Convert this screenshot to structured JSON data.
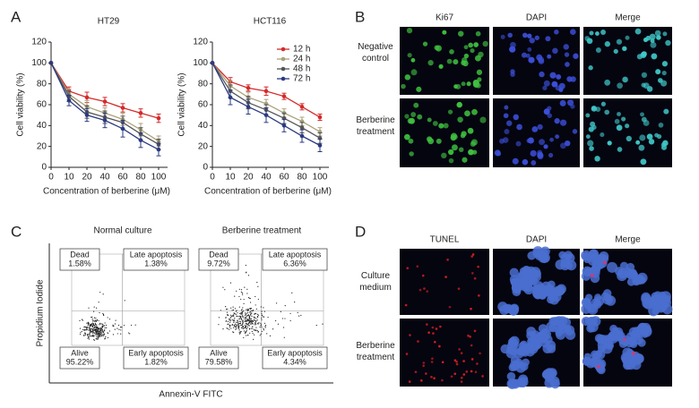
{
  "panel_labels": [
    "A",
    "B",
    "C",
    "D"
  ],
  "chart_data": [
    {
      "type": "line",
      "title": "HT29",
      "xlabel": "Concentration of berberine (μM)",
      "ylabel": "Cell viability (%)",
      "categories": [
        "0",
        "10",
        "20",
        "40",
        "60",
        "80",
        "100"
      ],
      "ylim": [
        0,
        120
      ],
      "yticks": [
        0,
        20,
        40,
        60,
        80,
        100,
        120
      ],
      "series": [
        {
          "color": "#d42a2a",
          "values": [
            100,
            73,
            67,
            63,
            57,
            52,
            47
          ],
          "errors": [
            0,
            4,
            5,
            4,
            4,
            4,
            4
          ]
        },
        {
          "color": "#aaa27a",
          "values": [
            100,
            70,
            58,
            52,
            46,
            36,
            25
          ],
          "errors": [
            0,
            5,
            6,
            5,
            6,
            6,
            5
          ]
        },
        {
          "color": "#555555",
          "values": [
            100,
            68,
            53,
            48,
            43,
            32,
            22
          ],
          "errors": [
            0,
            5,
            6,
            6,
            6,
            6,
            5
          ]
        },
        {
          "color": "#2b3a80",
          "values": [
            100,
            64,
            50,
            45,
            37,
            26,
            17
          ],
          "errors": [
            0,
            5,
            6,
            7,
            8,
            7,
            6
          ]
        }
      ]
    },
    {
      "type": "line",
      "title": "HCT116",
      "xlabel": "Concentration of berberine (μM)",
      "ylabel": "Cell viability (%)",
      "categories": [
        "0",
        "10",
        "20",
        "40",
        "60",
        "80",
        "100"
      ],
      "ylim": [
        0,
        120
      ],
      "yticks": [
        0,
        20,
        40,
        60,
        80,
        100,
        120
      ],
      "legend": "upper right",
      "series": [
        {
          "name": "12 h",
          "color": "#d42a2a",
          "values": [
            100,
            82,
            76,
            73,
            68,
            58,
            48
          ],
          "errors": [
            0,
            4,
            3,
            4,
            3,
            3,
            3
          ]
        },
        {
          "name": "24 h",
          "color": "#aaa27a",
          "values": [
            100,
            78,
            67,
            61,
            52,
            44,
            34
          ],
          "errors": [
            0,
            5,
            5,
            4,
            4,
            4,
            4
          ]
        },
        {
          "name": "48 h",
          "color": "#555555",
          "values": [
            100,
            73,
            62,
            55,
            47,
            38,
            28
          ],
          "errors": [
            0,
            6,
            6,
            5,
            5,
            5,
            5
          ]
        },
        {
          "name": "72 h",
          "color": "#2b3a80",
          "values": [
            100,
            67,
            58,
            50,
            40,
            30,
            21
          ],
          "errors": [
            0,
            7,
            7,
            7,
            6,
            6,
            6
          ]
        }
      ]
    }
  ],
  "ki67": {
    "columns": [
      "Ki67",
      "DAPI",
      "Merge"
    ],
    "rows": [
      "Negative control",
      "Berberine treatment"
    ]
  },
  "flow": {
    "ylabel": "Propidium Iodide",
    "xlabel": "Annexin-V FITC",
    "plots": [
      {
        "title": "Normal culture",
        "quadrants": [
          {
            "label": "Dead",
            "value": "1.58%"
          },
          {
            "label": "Late apoptosis",
            "value": "1.38%"
          },
          {
            "label": "Alive",
            "value": "95.22%"
          },
          {
            "label": "Early apoptosis",
            "value": "1.82%"
          }
        ]
      },
      {
        "title": "Berberine treatment",
        "quadrants": [
          {
            "label": "Dead",
            "value": "9.72%"
          },
          {
            "label": "Late apoptosis",
            "value": "6.36%"
          },
          {
            "label": "Alive",
            "value": "79.58%"
          },
          {
            "label": "Early apoptosis",
            "value": "4.34%"
          }
        ]
      }
    ]
  },
  "tunel": {
    "columns": [
      "TUNEL",
      "DAPI",
      "Merge"
    ],
    "rows": [
      "Culture medium",
      "Berberine treatment"
    ]
  }
}
